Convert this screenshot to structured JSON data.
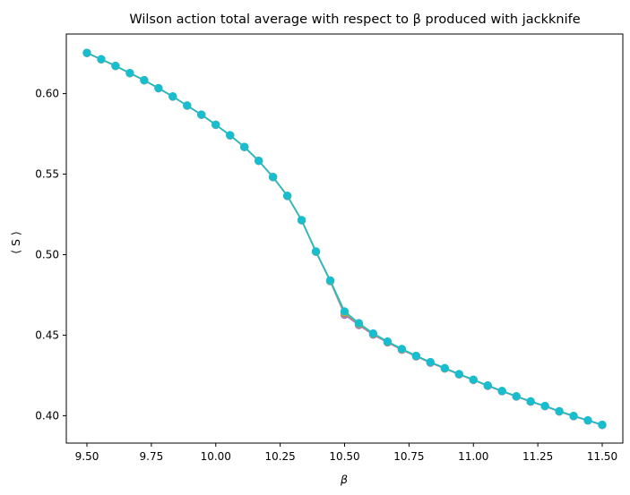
{
  "chart_data": {
    "type": "line",
    "title": "Wilson action total average with respect to β produced with jackknife",
    "xlabel": "β",
    "ylabel": "⟨ S ⟩",
    "xlim": [
      9.42,
      11.58
    ],
    "ylim": [
      0.383,
      0.637
    ],
    "xticks": [
      "9.50",
      "9.75",
      "10.00",
      "10.25",
      "10.50",
      "10.75",
      "11.00",
      "11.25",
      "11.50"
    ],
    "yticks": [
      "0.40",
      "0.45",
      "0.50",
      "0.55",
      "0.60"
    ],
    "grid": false,
    "legend": "none",
    "x": [
      9.5,
      9.5556,
      9.6111,
      9.6667,
      9.7222,
      9.7778,
      9.8333,
      9.8889,
      9.9444,
      10.0,
      10.0556,
      10.1111,
      10.1667,
      10.2222,
      10.2778,
      10.3333,
      10.3889,
      10.4444,
      10.5,
      10.5556,
      10.6111,
      10.6667,
      10.7222,
      10.7778,
      10.8333,
      10.8889,
      10.9444,
      11.0,
      11.0556,
      11.1111,
      11.1667,
      11.2222,
      11.2778,
      11.3333,
      11.3889,
      11.4444,
      11.5
    ],
    "series": [
      {
        "color": "#9467bd",
        "values": [
          0.6252,
          0.6212,
          0.6171,
          0.6126,
          0.6082,
          0.6033,
          0.5981,
          0.5925,
          0.5868,
          0.5806,
          0.574,
          0.5668,
          0.5582,
          0.5481,
          0.5364,
          0.5213,
          0.5017,
          0.4835,
          0.4627,
          0.4563,
          0.4503,
          0.4455,
          0.4409,
          0.4368,
          0.4329,
          0.4293,
          0.4256,
          0.4222,
          0.4185,
          0.4152,
          0.4119,
          0.4087,
          0.4059,
          0.4026,
          0.3997,
          0.397,
          0.3942
        ]
      },
      {
        "color": "#e377c2",
        "values": [
          0.6252,
          0.6213,
          0.6171,
          0.6127,
          0.6083,
          0.6033,
          0.5982,
          0.5925,
          0.5869,
          0.5806,
          0.5741,
          0.5668,
          0.5582,
          0.5482,
          0.5364,
          0.5213,
          0.5018,
          0.4836,
          0.4632,
          0.4566,
          0.4505,
          0.4456,
          0.4411,
          0.4369,
          0.433,
          0.4293,
          0.4257,
          0.4222,
          0.4186,
          0.4153,
          0.412,
          0.4088,
          0.4059,
          0.4027,
          0.3998,
          0.397,
          0.3943
        ]
      },
      {
        "color": "#7f7f7f",
        "values": [
          0.6253,
          0.6213,
          0.6172,
          0.6127,
          0.6083,
          0.6034,
          0.5982,
          0.5926,
          0.5869,
          0.5807,
          0.5741,
          0.5669,
          0.5583,
          0.5482,
          0.5365,
          0.5214,
          0.5018,
          0.4837,
          0.4637,
          0.4569,
          0.4507,
          0.4458,
          0.4412,
          0.437,
          0.4331,
          0.4294,
          0.4258,
          0.4223,
          0.4187,
          0.4153,
          0.412,
          0.4088,
          0.406,
          0.4027,
          0.3998,
          0.3971,
          0.3943
        ]
      },
      {
        "color": "#bcbd22",
        "values": [
          0.6253,
          0.6213,
          0.6172,
          0.6127,
          0.6083,
          0.6034,
          0.5982,
          0.5926,
          0.5869,
          0.5807,
          0.5741,
          0.5669,
          0.5583,
          0.5482,
          0.5365,
          0.5214,
          0.5019,
          0.4838,
          0.4642,
          0.4572,
          0.4509,
          0.4459,
          0.4413,
          0.4371,
          0.4332,
          0.4295,
          0.4258,
          0.4223,
          0.4187,
          0.4154,
          0.4121,
          0.4089,
          0.406,
          0.4028,
          0.3999,
          0.3971,
          0.3944
        ]
      },
      {
        "color": "#17becf",
        "values": [
          0.6253,
          0.6214,
          0.6172,
          0.6128,
          0.6084,
          0.6034,
          0.5983,
          0.5926,
          0.587,
          0.5807,
          0.5742,
          0.5669,
          0.5583,
          0.5483,
          0.5366,
          0.5215,
          0.502,
          0.484,
          0.4648,
          0.4575,
          0.4511,
          0.4461,
          0.4415,
          0.4372,
          0.4333,
          0.4296,
          0.4259,
          0.4224,
          0.4188,
          0.4154,
          0.4121,
          0.4089,
          0.4061,
          0.4028,
          0.3999,
          0.3972,
          0.3944
        ]
      }
    ]
  }
}
